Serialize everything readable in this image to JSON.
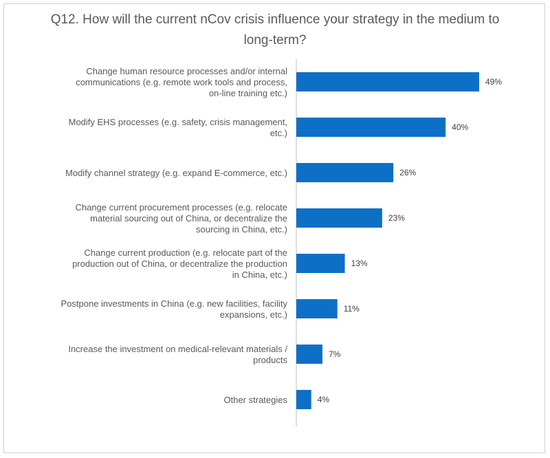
{
  "chart_data": {
    "type": "bar",
    "orientation": "horizontal",
    "title": "Q12. How will the current nCov crisis influence your strategy in the medium to long-term?",
    "xlabel": "",
    "ylabel": "",
    "xlim": [
      0,
      49
    ],
    "grid": false,
    "legend": "none",
    "bar_color": "#0E6FC7",
    "categories": [
      [
        "Change human resource processes and/or internal",
        "communications (e.g. remote work tools and process,",
        "on-line training etc.)"
      ],
      [
        "Modify EHS processes (e.g. safety, crisis management,",
        "etc.)"
      ],
      [
        "Modify channel strategy (e.g. expand E-commerce, etc.)"
      ],
      [
        "Change current procurement processes (e.g. relocate",
        "material sourcing out of China, or decentralize the",
        "sourcing in China, etc.)"
      ],
      [
        "Change current production (e.g. relocate part of the",
        "production out of China, or decentralize the production",
        "in China, etc.)"
      ],
      [
        "Postpone investments in China (e.g. new facilities, facility",
        "expansions, etc.)"
      ],
      [
        "Increase the investment on medical-relevant materials /",
        "products"
      ],
      [
        "Other strategies"
      ]
    ],
    "values": [
      49,
      40,
      26,
      23,
      13,
      11,
      7,
      4
    ],
    "value_labels": [
      "49%",
      "40%",
      "26%",
      "23%",
      "13%",
      "11%",
      "7%",
      "4%"
    ]
  }
}
